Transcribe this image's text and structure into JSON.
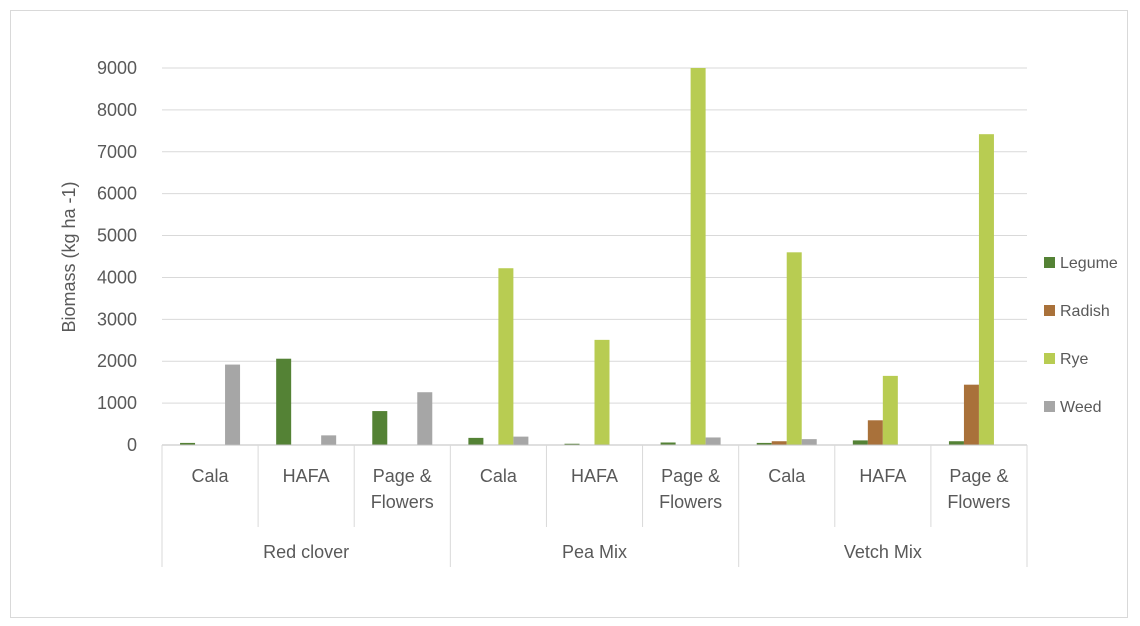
{
  "chart_data": {
    "type": "bar",
    "ylabel": "Biomass (kg ha -1)",
    "ylim": [
      0,
      9000
    ],
    "yticks": [
      0,
      1000,
      2000,
      3000,
      4000,
      5000,
      6000,
      7000,
      8000,
      9000
    ],
    "grid": true,
    "legend_position": "right",
    "groups": [
      {
        "label": "Red clover",
        "categories": [
          "Cala",
          "HAFA",
          "Page & Flowers"
        ]
      },
      {
        "label": "Pea Mix",
        "categories": [
          "Cala",
          "HAFA",
          "Page & Flowers"
        ]
      },
      {
        "label": "Vetch Mix",
        "categories": [
          "Cala",
          "HAFA",
          "Page & Flowers"
        ]
      }
    ],
    "category_lines": {
      "Cala": [
        "Cala"
      ],
      "HAFA": [
        "HAFA"
      ],
      "Page & Flowers": [
        "Page &",
        "Flowers"
      ]
    },
    "series": [
      {
        "name": "Legume",
        "color": "#548235",
        "values": [
          50,
          2060,
          810,
          170,
          30,
          60,
          50,
          110,
          90
        ]
      },
      {
        "name": "Radish",
        "color": "#A9713A",
        "values": [
          0,
          0,
          0,
          0,
          0,
          0,
          90,
          590,
          1440
        ]
      },
      {
        "name": "Rye",
        "color": "#B8CC52",
        "values": [
          0,
          0,
          0,
          4220,
          2510,
          9000,
          4600,
          1650,
          7420
        ]
      },
      {
        "name": "Weed",
        "color": "#A6A6A6",
        "values": [
          1920,
          230,
          1260,
          200,
          0,
          180,
          140,
          0,
          0
        ]
      }
    ]
  }
}
